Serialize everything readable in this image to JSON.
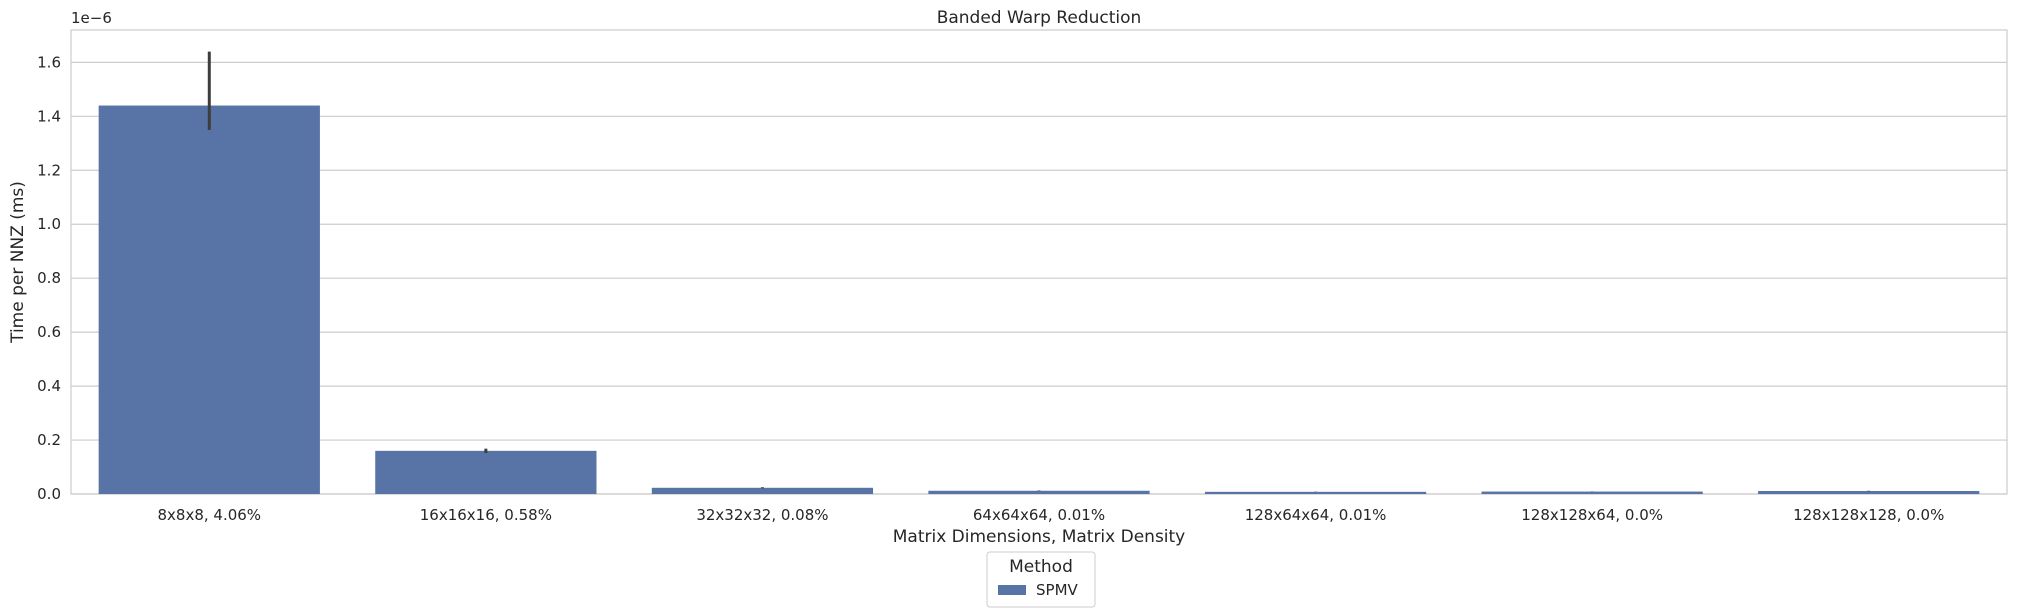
{
  "chart_data": {
    "type": "bar",
    "title": "Banded Warp Reduction",
    "xlabel": "Matrix Dimensions, Matrix Density",
    "ylabel": "Time per NNZ (ms)",
    "y_offset_label": "1e−6",
    "y_scale": 1e-06,
    "ylim": [
      0,
      1.72e-06
    ],
    "yticks": [
      0,
      2e-07,
      4e-07,
      6e-07,
      8e-07,
      1e-06,
      1.2e-06,
      1.4e-06,
      1.6e-06
    ],
    "ytick_labels": [
      "0.0",
      "0.2",
      "0.4",
      "0.6",
      "0.8",
      "1.0",
      "1.2",
      "1.4",
      "1.6"
    ],
    "grid": true,
    "categories": [
      "8x8x8, 4.06%",
      "16x16x16, 0.58%",
      "32x32x32, 0.08%",
      "64x64x64, 0.01%",
      "128x64x64, 0.01%",
      "128x128x64, 0.0%",
      "128x128x128, 0.0%"
    ],
    "series": [
      {
        "name": "SPMV",
        "color": "#5874a6",
        "values": [
          1.44e-06,
          1.6e-07,
          2.3e-08,
          1.2e-08,
          8e-09,
          9e-09,
          1.1e-08
        ],
        "error_low": [
          1.35e-06,
          1.52e-07,
          2.1e-08,
          1.1e-08,
          7.5e-09,
          8.5e-09,
          1e-08
        ],
        "error_high": [
          1.64e-06,
          1.68e-07,
          2.5e-08,
          1.3e-08,
          8.5e-09,
          9.5e-09,
          1.2e-08
        ]
      }
    ],
    "legend": {
      "title": "Method",
      "position": "bottom-center"
    }
  }
}
